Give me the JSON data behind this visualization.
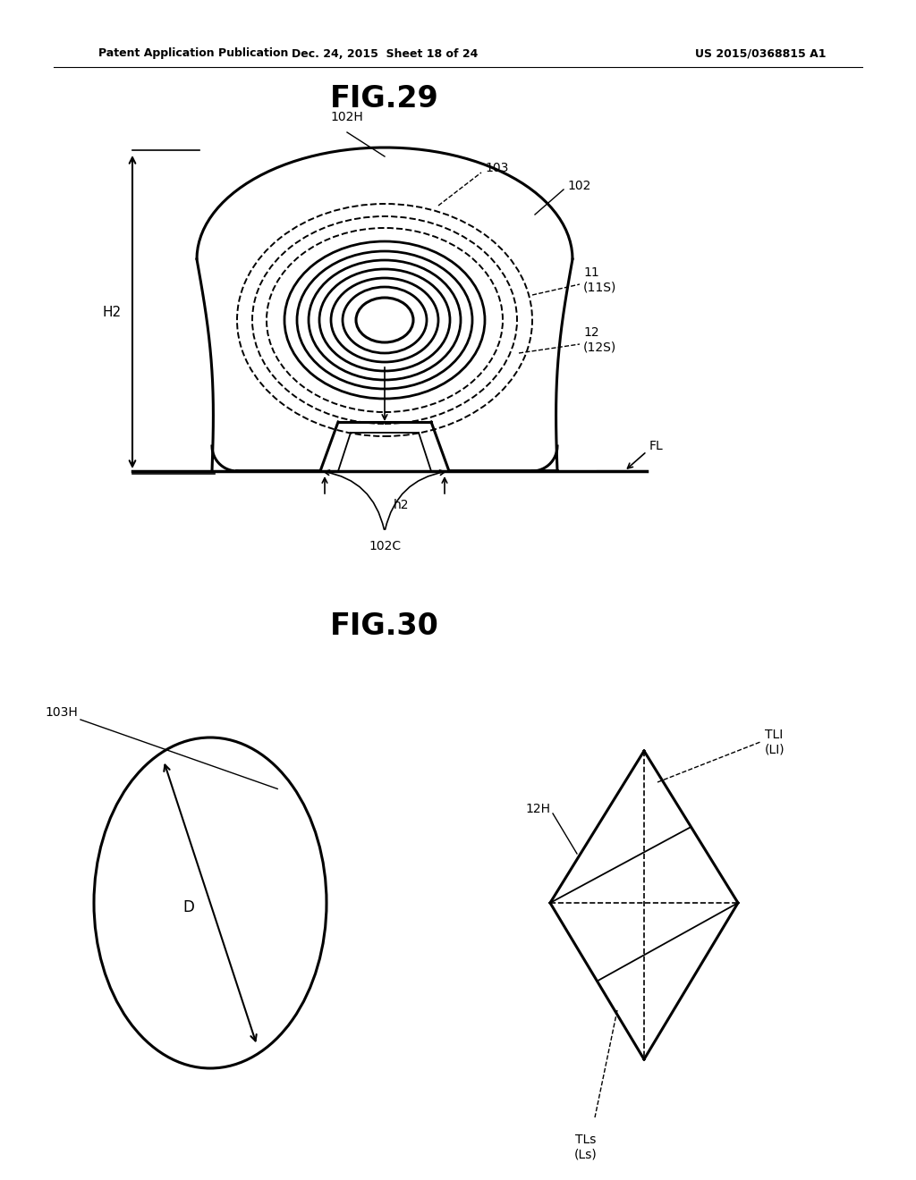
{
  "background_color": "#ffffff",
  "header_left": "Patent Application Publication",
  "header_center": "Dec. 24, 2015  Sheet 18 of 24",
  "header_right": "US 2015/0368815 A1",
  "fig29_title": "FIG.29",
  "fig30_title": "FIG.30",
  "line_color": "#000000"
}
